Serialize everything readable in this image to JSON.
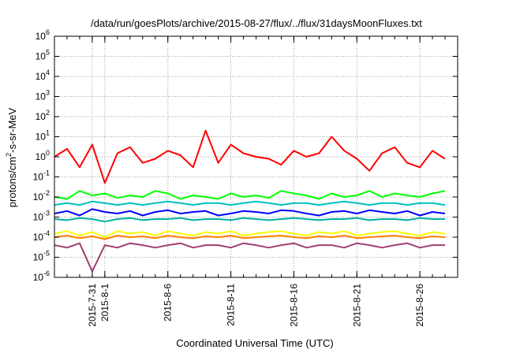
{
  "chart_data": {
    "type": "line",
    "title": "/data/run/goesPlots/archive/2015-08-27/flux/../flux/31daysMoonFluxes.txt",
    "xlabel": "Coordinated Universal Time (UTC)",
    "ylabel": "protons/cm2-s-sr-MeV",
    "ylabel_parts": {
      "pre": "protons/cm",
      "sup": "2",
      "post": "-s-sr-MeV"
    },
    "yscale": "log",
    "ylim": [
      1e-06,
      1000000.0
    ],
    "y_ticks": [
      {
        "base": "10",
        "exp": "-6",
        "value": -6
      },
      {
        "base": "10",
        "exp": "-5",
        "value": -5
      },
      {
        "base": "10",
        "exp": "-4",
        "value": -4
      },
      {
        "base": "10",
        "exp": "-3",
        "value": -3
      },
      {
        "base": "10",
        "exp": "-2",
        "value": -2
      },
      {
        "base": "10",
        "exp": "-1",
        "value": -1
      },
      {
        "base": "10",
        "exp": "0",
        "value": 0
      },
      {
        "base": "10",
        "exp": "1",
        "value": 1
      },
      {
        "base": "10",
        "exp": "2",
        "value": 2
      },
      {
        "base": "10",
        "exp": "3",
        "value": 3
      },
      {
        "base": "10",
        "exp": "4",
        "value": 4
      },
      {
        "base": "10",
        "exp": "5",
        "value": 5
      },
      {
        "base": "10",
        "exp": "6",
        "value": 6
      }
    ],
    "xlim": [
      "2015-07-28",
      "2015-08-29"
    ],
    "x_ticks": [
      {
        "label": "2015-7-31",
        "date": "2015-07-31"
      },
      {
        "label": "2015-8-1",
        "date": "2015-08-01"
      },
      {
        "label": "2015-8-6",
        "date": "2015-08-06"
      },
      {
        "label": "2015-8-11",
        "date": "2015-08-11"
      },
      {
        "label": "2015-8-16",
        "date": "2015-08-16"
      },
      {
        "label": "2015-8-21",
        "date": "2015-08-21"
      },
      {
        "label": "2015-8-26",
        "date": "2015-08-26"
      }
    ],
    "grid": true,
    "legend": "none",
    "x": [
      "2015-07-28",
      "2015-07-29",
      "2015-07-30",
      "2015-07-31",
      "2015-08-01",
      "2015-08-02",
      "2015-08-03",
      "2015-08-04",
      "2015-08-05",
      "2015-08-06",
      "2015-08-07",
      "2015-08-08",
      "2015-08-09",
      "2015-08-10",
      "2015-08-11",
      "2015-08-12",
      "2015-08-13",
      "2015-08-14",
      "2015-08-15",
      "2015-08-16",
      "2015-08-17",
      "2015-08-18",
      "2015-08-19",
      "2015-08-20",
      "2015-08-21",
      "2015-08-22",
      "2015-08-23",
      "2015-08-24",
      "2015-08-25",
      "2015-08-26",
      "2015-08-27",
      "2015-08-28"
    ],
    "series": [
      {
        "color": "#ff0000",
        "values": [
          1.0,
          2.5,
          0.3,
          4.0,
          0.05,
          1.5,
          3.0,
          0.5,
          0.8,
          2.0,
          1.2,
          0.3,
          20.0,
          0.5,
          4.0,
          1.5,
          1.0,
          0.8,
          0.4,
          2.0,
          1.0,
          1.5,
          10.0,
          2.0,
          0.8,
          0.2,
          1.5,
          3.0,
          0.5,
          0.3,
          2.0,
          0.8
        ]
      },
      {
        "color": "#00ff00",
        "values": [
          0.01,
          0.008,
          0.02,
          0.012,
          0.015,
          0.009,
          0.012,
          0.01,
          0.02,
          0.015,
          0.008,
          0.012,
          0.01,
          0.008,
          0.015,
          0.01,
          0.012,
          0.009,
          0.02,
          0.015,
          0.012,
          0.008,
          0.015,
          0.01,
          0.012,
          0.02,
          0.01,
          0.015,
          0.012,
          0.01,
          0.015,
          0.02
        ]
      },
      {
        "color": "#00c0c0",
        "values": [
          0.004,
          0.005,
          0.004,
          0.006,
          0.005,
          0.004,
          0.005,
          0.004,
          0.005,
          0.006,
          0.005,
          0.004,
          0.005,
          0.005,
          0.004,
          0.005,
          0.006,
          0.005,
          0.004,
          0.005,
          0.005,
          0.004,
          0.005,
          0.006,
          0.005,
          0.004,
          0.005,
          0.005,
          0.004,
          0.005,
          0.005,
          0.004
        ]
      },
      {
        "color": "#0000ff",
        "values": [
          0.0015,
          0.002,
          0.0012,
          0.0025,
          0.0018,
          0.0015,
          0.002,
          0.0012,
          0.0018,
          0.0022,
          0.0015,
          0.0018,
          0.002,
          0.0012,
          0.0015,
          0.002,
          0.0018,
          0.0015,
          0.0022,
          0.002,
          0.0015,
          0.0012,
          0.0018,
          0.002,
          0.0015,
          0.0022,
          0.0018,
          0.0015,
          0.002,
          0.0012,
          0.0018,
          0.0015
        ]
      },
      {
        "color": "#00b0a0",
        "values": [
          0.0008,
          0.0007,
          0.0009,
          0.0008,
          0.0006,
          0.0008,
          0.0009,
          0.0007,
          0.0008,
          0.0008,
          0.0009,
          0.0007,
          0.0008,
          0.0008,
          0.0007,
          0.0009,
          0.0008,
          0.0007,
          0.0008,
          0.0009,
          0.0008,
          0.0007,
          0.0008,
          0.0008,
          0.0009,
          0.0007,
          0.0008,
          0.0008,
          0.0007,
          0.0009,
          0.0008,
          0.0008
        ]
      },
      {
        "color": "#ffff00",
        "values": [
          0.00015,
          0.0002,
          0.00012,
          0.00018,
          0.0001,
          0.0002,
          0.00015,
          0.00018,
          0.00012,
          0.0002,
          0.00015,
          0.00012,
          0.00018,
          0.00015,
          0.0002,
          0.00012,
          0.00015,
          0.00018,
          0.0002,
          0.00015,
          0.00012,
          0.00018,
          0.00015,
          0.0002,
          0.00012,
          0.00015,
          0.00018,
          0.0002,
          0.00015,
          0.00012,
          0.00018,
          0.00015
        ]
      },
      {
        "color": "#ff8000",
        "values": [
          0.0001,
          0.00012,
          9e-05,
          0.00011,
          8e-05,
          0.00012,
          0.0001,
          0.00011,
          9e-05,
          0.00012,
          0.0001,
          9e-05,
          0.00011,
          0.0001,
          0.00012,
          9e-05,
          0.0001,
          0.00011,
          0.00012,
          0.0001,
          9e-05,
          0.00011,
          0.0001,
          0.00012,
          9e-05,
          0.0001,
          0.00011,
          0.00012,
          0.0001,
          9e-05,
          0.00011,
          0.0001
        ]
      },
      {
        "color": "#a04070",
        "values": [
          4e-05,
          3e-05,
          5e-05,
          2e-06,
          4e-05,
          3e-05,
          5e-05,
          4e-05,
          3e-05,
          4e-05,
          5e-05,
          3e-05,
          4e-05,
          4e-05,
          3e-05,
          5e-05,
          4e-05,
          3e-05,
          4e-05,
          5e-05,
          3e-05,
          4e-05,
          4e-05,
          3e-05,
          5e-05,
          4e-05,
          3e-05,
          4e-05,
          5e-05,
          3e-05,
          4e-05,
          4e-05
        ]
      }
    ]
  }
}
